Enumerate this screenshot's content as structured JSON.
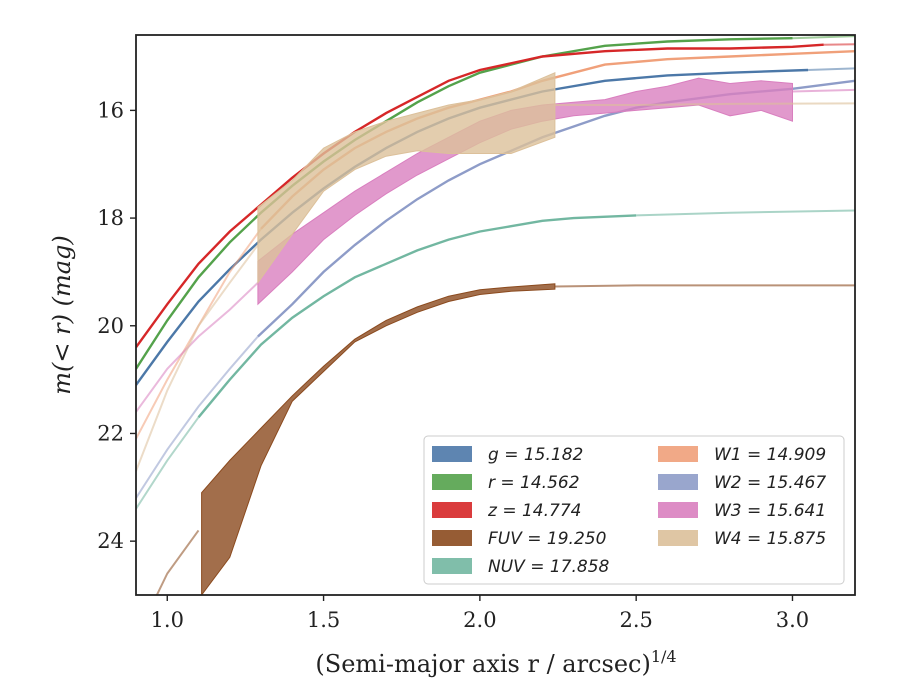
{
  "chart_data": {
    "type": "line",
    "xlabel": "(Semi-major axis r / arcsec)",
    "xlabel_sup": "1/4",
    "ylabel": "m(< r) (mag)",
    "xlim": [
      0.9,
      3.2
    ],
    "ylim": [
      25.0,
      14.0
    ],
    "y_inverted": true,
    "grid": false,
    "legend_position": "lower-right",
    "x_ticks": [
      "1.0",
      "1.5",
      "2.0",
      "2.5",
      "3.0"
    ],
    "y_ticks": [
      "16",
      "18",
      "20",
      "22",
      "24"
    ],
    "series": [
      {
        "name": "g = 15.182",
        "color": "#4c78a8",
        "x": [
          0.9,
          1.0,
          1.1,
          1.2,
          1.3,
          1.4,
          1.5,
          1.6,
          1.7,
          1.8,
          1.9,
          2.0,
          2.2,
          2.4,
          2.6,
          2.8,
          3.05
        ],
        "y": [
          21.1,
          20.3,
          19.55,
          18.95,
          18.4,
          17.9,
          17.45,
          17.05,
          16.7,
          16.4,
          16.15,
          15.95,
          15.65,
          15.45,
          15.35,
          15.3,
          15.25
        ],
        "solid_until": 3.05,
        "ext_x": [
          3.05,
          3.2
        ],
        "ext_y": [
          15.25,
          15.22
        ]
      },
      {
        "name": "r = 14.562",
        "color": "#54a24b",
        "x": [
          0.9,
          1.0,
          1.1,
          1.2,
          1.3,
          1.4,
          1.5,
          1.6,
          1.7,
          1.8,
          1.9,
          2.0,
          2.2,
          2.4,
          2.6,
          2.8,
          3.0
        ],
        "y": [
          20.8,
          19.9,
          19.1,
          18.45,
          17.9,
          17.4,
          16.95,
          16.55,
          16.2,
          15.85,
          15.55,
          15.3,
          15.0,
          14.8,
          14.72,
          14.68,
          14.66
        ],
        "solid_until": 3.0,
        "ext_x": [
          3.0,
          3.2
        ],
        "ext_y": [
          14.66,
          14.62
        ]
      },
      {
        "name": "z = 14.774",
        "color": "#d62728",
        "x": [
          0.9,
          1.0,
          1.1,
          1.2,
          1.3,
          1.4,
          1.5,
          1.6,
          1.7,
          1.8,
          1.9,
          2.0,
          2.2,
          2.4,
          2.6,
          2.8,
          3.0,
          3.1
        ],
        "y": [
          20.4,
          19.6,
          18.85,
          18.25,
          17.75,
          17.25,
          16.8,
          16.4,
          16.05,
          15.75,
          15.45,
          15.25,
          15.0,
          14.9,
          14.85,
          14.85,
          14.82,
          14.78
        ],
        "solid_until": 3.1,
        "ext_x": [
          3.1,
          3.2
        ],
        "ext_y": [
          14.78,
          14.77
        ]
      },
      {
        "name": "FUV = 19.250",
        "color": "#8b4a1e",
        "band": true,
        "x": [
          1.11,
          1.2,
          1.3,
          1.4,
          1.5,
          1.6,
          1.7,
          1.8,
          1.9,
          2.0,
          2.1,
          2.24
        ],
        "y_upper": [
          23.1,
          22.5,
          21.9,
          21.3,
          20.75,
          20.25,
          19.9,
          19.65,
          19.45,
          19.33,
          19.28,
          19.22
        ],
        "y_lower": [
          25.0,
          24.3,
          22.6,
          21.4,
          20.85,
          20.3,
          20.0,
          19.75,
          19.55,
          19.42,
          19.36,
          19.32
        ],
        "ext_x": [
          0.9,
          1.0,
          1.1
        ],
        "ext_y": [
          25.8,
          24.6,
          23.8
        ],
        "ext2_x": [
          2.24,
          2.5,
          2.8,
          3.2
        ],
        "ext2_y": [
          19.27,
          19.25,
          19.25,
          19.25
        ]
      },
      {
        "name": "NUV = 17.858",
        "color": "#72b7a1",
        "x": [
          1.1,
          1.2,
          1.3,
          1.4,
          1.5,
          1.6,
          1.7,
          1.8,
          1.9,
          2.0,
          2.1,
          2.2,
          2.3,
          2.5
        ],
        "y": [
          21.7,
          21.0,
          20.35,
          19.85,
          19.45,
          19.1,
          18.85,
          18.6,
          18.4,
          18.25,
          18.15,
          18.05,
          18.0,
          17.95
        ],
        "solid_until": 2.5,
        "ext_x": [
          0.9,
          1.0,
          1.1
        ],
        "ext_y": [
          23.4,
          22.5,
          21.7
        ],
        "ext2_x": [
          2.5,
          2.8,
          3.2
        ],
        "ext2_y": [
          17.95,
          17.9,
          17.86
        ]
      },
      {
        "name": "W1 = 14.909",
        "color": "#f0a07a",
        "x": [
          1.3,
          1.4,
          1.5,
          1.6,
          1.7,
          1.8,
          1.9,
          2.0,
          2.1,
          2.2,
          2.3,
          2.4,
          2.6,
          2.8,
          3.0,
          3.2
        ],
        "y": [
          18.2,
          17.6,
          17.1,
          16.7,
          16.4,
          16.15,
          15.95,
          15.8,
          15.65,
          15.45,
          15.3,
          15.15,
          15.05,
          15.0,
          14.95,
          14.9
        ],
        "ext_x": [
          0.9,
          1.0,
          1.1,
          1.2,
          1.3
        ],
        "ext_y": [
          22.1,
          21.0,
          20.0,
          19.0,
          18.2
        ]
      },
      {
        "name": "W2 = 15.467",
        "color": "#8e9cc8",
        "x": [
          1.29,
          1.4,
          1.5,
          1.6,
          1.7,
          1.8,
          1.9,
          2.0,
          2.1,
          2.2,
          2.3,
          2.4,
          2.5,
          2.6,
          2.8,
          3.0,
          3.2
        ],
        "y": [
          20.2,
          19.6,
          19.0,
          18.5,
          18.05,
          17.65,
          17.3,
          17.0,
          16.75,
          16.5,
          16.3,
          16.1,
          15.95,
          15.85,
          15.7,
          15.6,
          15.45
        ],
        "ext_x": [
          0.9,
          1.0,
          1.1,
          1.2,
          1.29
        ],
        "ext_y": [
          23.2,
          22.3,
          21.5,
          20.8,
          20.2
        ]
      },
      {
        "name": "W3 = 15.641",
        "color": "#d97fbf",
        "band": true,
        "x": [
          1.29,
          1.4,
          1.5,
          1.6,
          1.7,
          1.8,
          1.9,
          2.0,
          2.1,
          2.2,
          2.3,
          2.4,
          2.5,
          2.6,
          2.7,
          2.8,
          2.9,
          3.0
        ],
        "y_upper": [
          18.8,
          18.3,
          17.9,
          17.5,
          17.15,
          16.8,
          16.5,
          16.2,
          16.0,
          15.9,
          15.85,
          15.8,
          15.65,
          15.55,
          15.4,
          15.5,
          15.45,
          15.5
        ],
        "y_lower": [
          19.6,
          19.0,
          18.4,
          17.95,
          17.55,
          17.2,
          16.9,
          16.6,
          16.35,
          16.2,
          16.1,
          16.05,
          16.0,
          15.95,
          15.9,
          16.1,
          16.0,
          16.2
        ],
        "ext_x": [
          0.9,
          1.0,
          1.1,
          1.2,
          1.29
        ],
        "ext_y": [
          21.6,
          20.8,
          20.2,
          19.7,
          19.2
        ],
        "ext2_x": [
          3.0,
          3.2
        ],
        "ext2_y": [
          15.65,
          15.62
        ]
      },
      {
        "name": "W4 = 15.875",
        "color": "#dcc09a",
        "band": true,
        "x": [
          1.29,
          1.4,
          1.5,
          1.6,
          1.7,
          1.8,
          1.9,
          2.0,
          2.1,
          2.24
        ],
        "y_upper": [
          17.8,
          17.3,
          16.7,
          16.4,
          16.2,
          16.05,
          15.9,
          15.8,
          15.65,
          15.3
        ],
        "y_lower": [
          19.2,
          18.3,
          17.5,
          17.1,
          16.85,
          16.75,
          16.8,
          16.8,
          16.8,
          16.5
        ],
        "ext_x": [
          0.9,
          1.0,
          1.1,
          1.2,
          1.29
        ],
        "ext_y": [
          22.7,
          21.2,
          20.0,
          19.2,
          18.5
        ],
        "ext2_x": [
          2.24,
          2.5,
          2.8,
          3.2
        ],
        "ext2_y": [
          15.9,
          15.9,
          15.88,
          15.87
        ]
      }
    ]
  }
}
